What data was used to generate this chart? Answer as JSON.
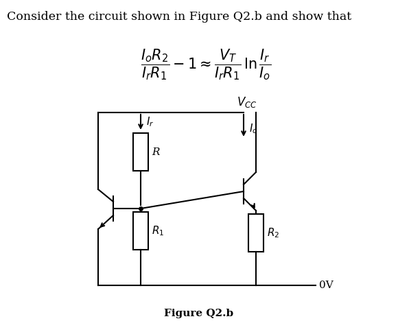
{
  "title_text": "Consider the circuit shown in Figure Q2.b and show that",
  "vcc_label": "$V_{CC}$",
  "figure_label": "Figure Q2.b",
  "ov_label": "0V",
  "R_label": "R",
  "R1_label": "$R_1$",
  "R2_label": "$R_2$",
  "Ir_label": "$I_r$",
  "Io_label": "$I_o$",
  "bg_color": "#ffffff",
  "line_color": "#000000",
  "font_size_title": 12.5,
  "font_size_formula": 15,
  "font_size_labels": 11
}
